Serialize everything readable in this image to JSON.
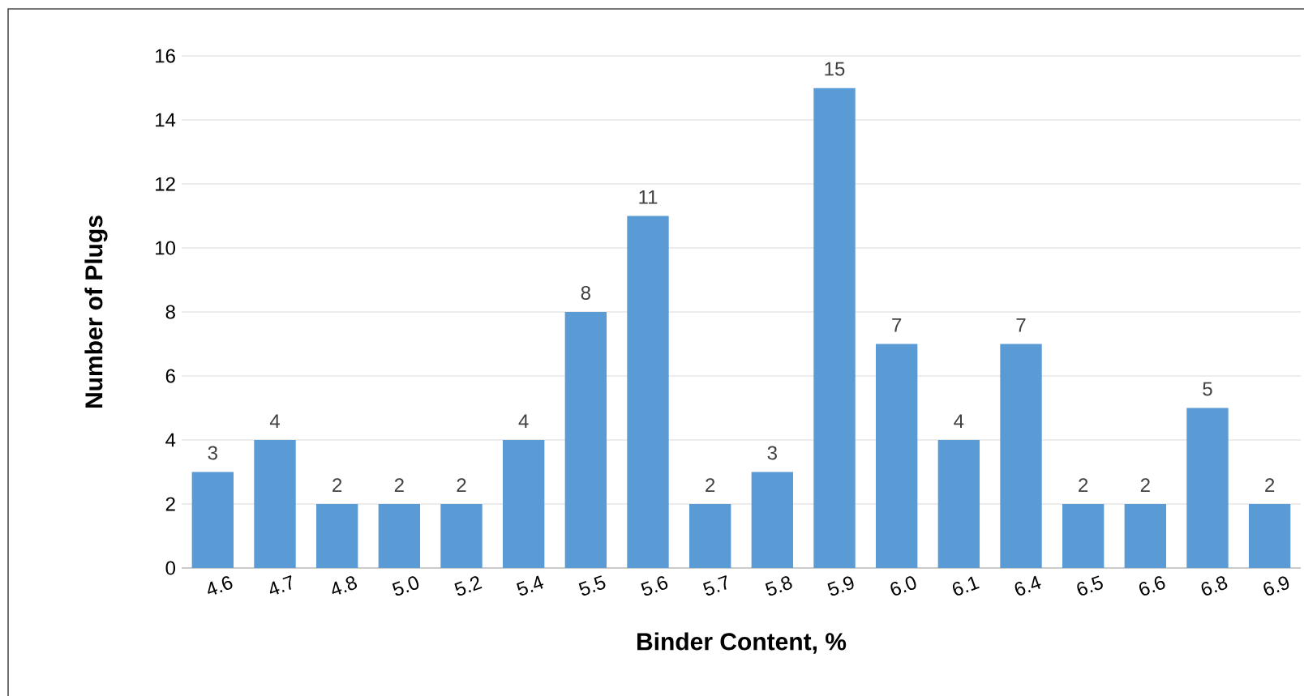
{
  "chart_data": {
    "type": "bar",
    "xlabel": "Binder Content, %",
    "ylabel": "Number of Plugs",
    "categories": [
      "4.6",
      "4.7",
      "4.8",
      "5.0",
      "5.2",
      "5.4",
      "5.5",
      "5.6",
      "5.7",
      "5.8",
      "5.9",
      "6.0",
      "6.1",
      "6.4",
      "6.5",
      "6.6",
      "6.8",
      "6.9"
    ],
    "values": [
      3,
      4,
      2,
      2,
      2,
      4,
      8,
      11,
      2,
      3,
      15,
      7,
      4,
      7,
      2,
      2,
      5,
      2
    ],
    "color": "#5b9bd5",
    "ylim": [
      0,
      16
    ],
    "yticks": [
      0,
      2,
      4,
      6,
      8,
      10,
      12,
      14,
      16
    ],
    "grid": "y",
    "data_labels": true
  }
}
